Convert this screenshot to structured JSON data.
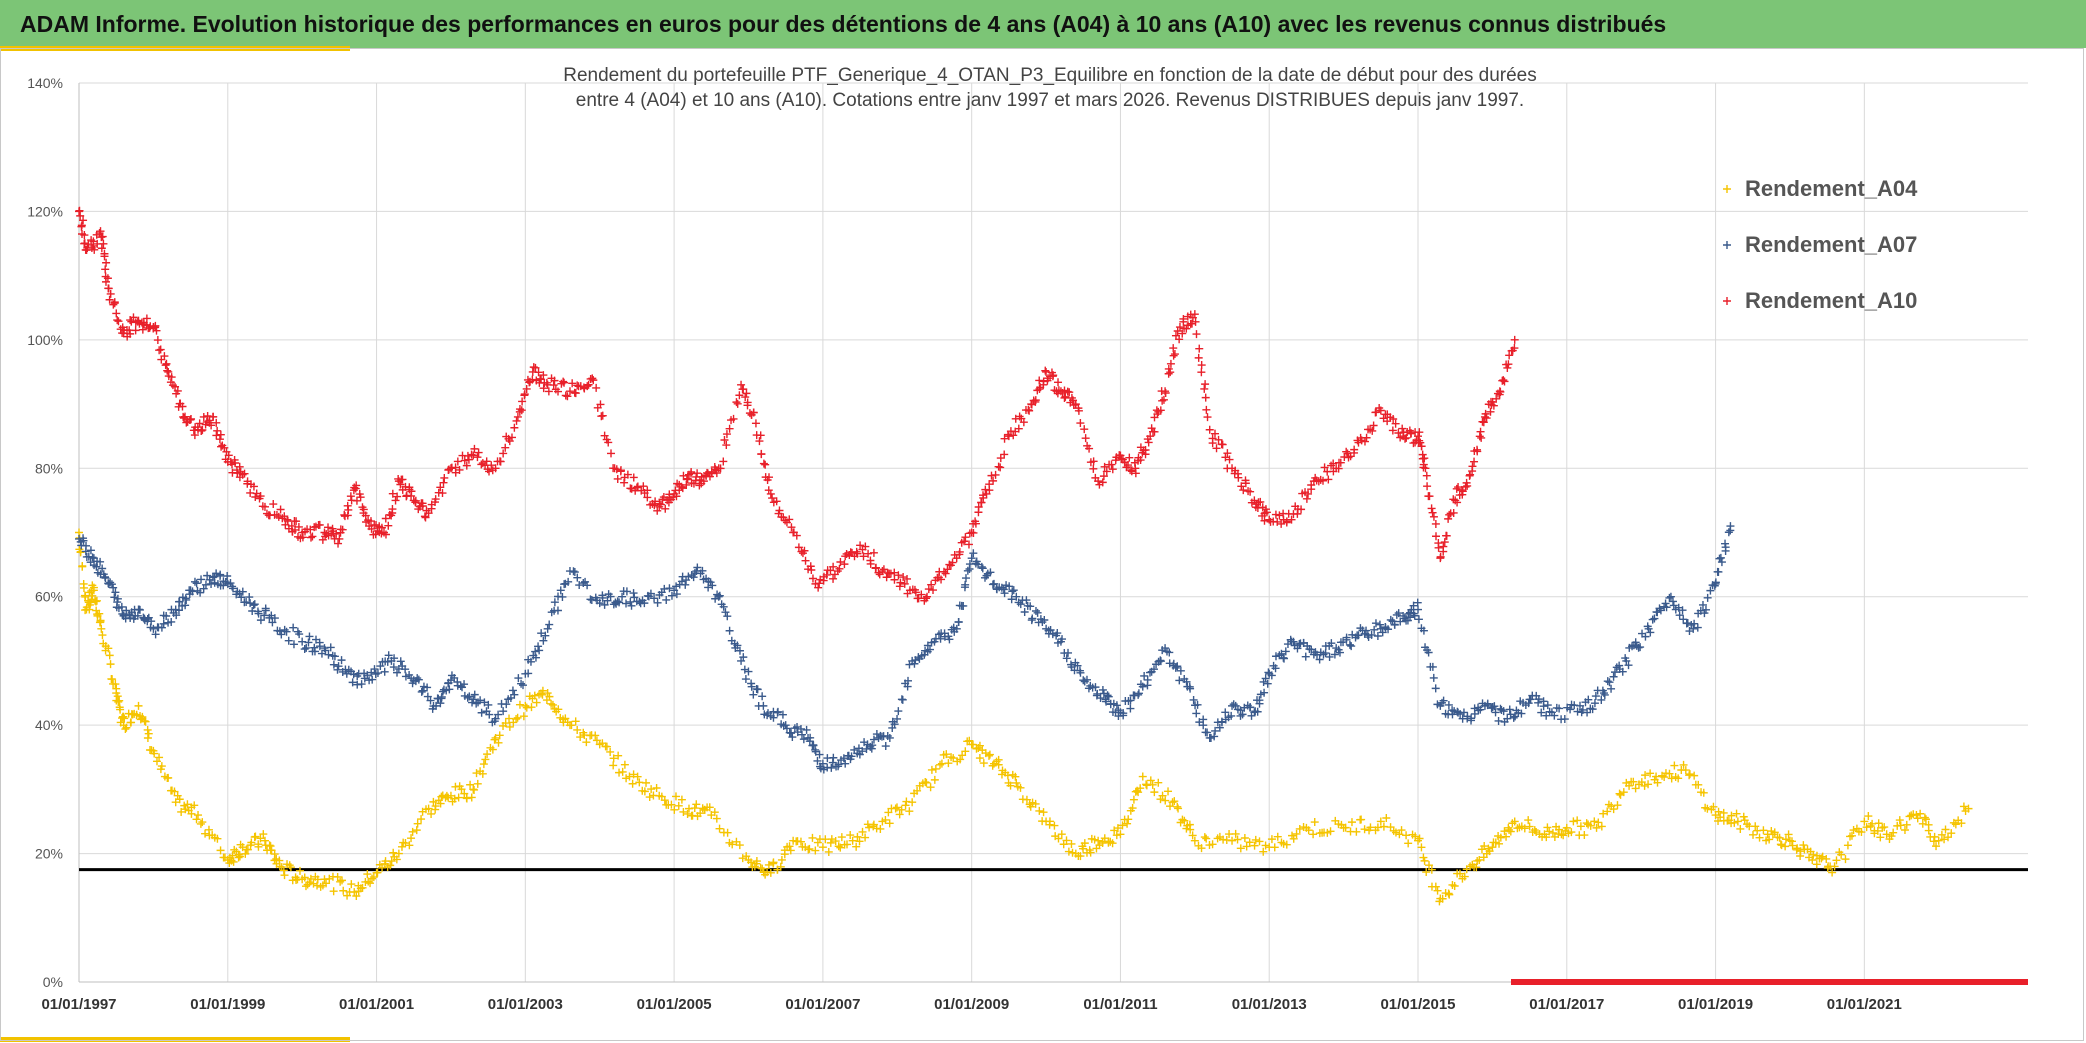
{
  "header": {
    "title": "ADAM Informe. Evolution historique des performances en euros pour des détentions de 4 ans (A04) à 10 ans (A10) avec les revenus connus distribués"
  },
  "colors": {
    "banner": "#7cc576",
    "accent": "#f2c200",
    "A04": "#f5c400",
    "A07": "#3a5a8c",
    "A10": "#e8202a",
    "reference": "#000000"
  },
  "chart_data": {
    "type": "scatter",
    "title_line1": "Rendement du portefeuille PTF_Generique_4_OTAN_P3_Equilibre  en fonction de la date de début pour des durées",
    "title_line2": "entre 4 (A04) et 10 ans (A10). Cotations entre janv 1997 et mars 2026. Revenus DISTRIBUES depuis janv 1997.",
    "xlabel": "",
    "ylabel": "",
    "xlim": [
      1997.0,
      2023.2
    ],
    "ylim": [
      0,
      140
    ],
    "yticks": [
      "0%",
      "20%",
      "40%",
      "60%",
      "80%",
      "100%",
      "120%",
      "140%"
    ],
    "xticks": [
      "01/01/1997",
      "01/01/1999",
      "01/01/2001",
      "01/01/2003",
      "01/01/2005",
      "01/01/2007",
      "01/01/2009",
      "01/01/2011",
      "01/01/2013",
      "01/01/2015",
      "01/01/2017",
      "01/01/2019",
      "01/01/2021"
    ],
    "xtick_years": [
      1997,
      1999,
      2001,
      2003,
      2005,
      2007,
      2009,
      2011,
      2013,
      2015,
      2017,
      2019,
      2021
    ],
    "reference_line": 17.5,
    "grid": true,
    "legend_position": "top-right",
    "legend": [
      "Rendement_A04",
      "Rendement_A07",
      "Rendement_A10"
    ],
    "series": [
      {
        "name": "Rendement_A04",
        "color": "#f5c400",
        "x": [
          1997.0,
          1997.1,
          1997.2,
          1997.3,
          1997.5,
          1997.6,
          1997.8,
          1998.0,
          1998.3,
          1998.6,
          1999.0,
          1999.2,
          1999.5,
          1999.7,
          2000.0,
          2000.3,
          2000.7,
          2001.0,
          2001.3,
          2001.7,
          2002.0,
          2002.3,
          2002.6,
          2003.0,
          2003.3,
          2003.6,
          2004.0,
          2004.4,
          2004.8,
          2005.2,
          2005.5,
          2006.0,
          2006.3,
          2006.6,
          2007.0,
          2007.4,
          2007.8,
          2008.2,
          2008.6,
          2009.0,
          2009.3,
          2009.6,
          2010.0,
          2010.4,
          2010.7,
          2011.0,
          2011.3,
          2011.7,
          2012.0,
          2012.5,
          2013.0,
          2013.5,
          2014.0,
          2014.5,
          2015.0,
          2015.3,
          2015.7,
          2016.0,
          2016.3,
          2016.7,
          2017.0,
          2017.4,
          2017.8,
          2018.2,
          2018.6,
          2019.0,
          2019.3,
          2019.7,
          2020.0,
          2020.3,
          2020.6,
          2021.0,
          2021.3,
          2021.7,
          2022.0,
          2022.4
        ],
        "y": [
          70,
          58,
          61,
          55,
          45,
          40,
          43,
          36,
          28,
          26,
          19,
          21,
          22,
          18,
          16,
          16,
          14,
          17,
          20,
          27,
          29,
          30,
          38,
          43,
          45,
          40,
          37,
          32,
          29,
          27,
          26,
          19,
          17,
          22,
          21,
          22,
          25,
          28,
          34,
          37,
          34,
          31,
          25,
          20,
          22,
          23,
          32,
          28,
          22,
          22,
          21,
          24,
          24,
          25,
          22,
          13,
          18,
          21,
          25,
          23,
          24,
          24,
          31,
          32,
          33,
          26,
          25,
          23,
          22,
          19,
          18,
          25,
          23,
          26,
          22,
          27
        ]
      },
      {
        "name": "Rendement_A07",
        "color": "#3a5a8c",
        "x": [
          1997.0,
          1997.2,
          1997.4,
          1997.6,
          1997.8,
          1998.0,
          1998.3,
          1998.5,
          1998.8,
          1999.0,
          1999.3,
          1999.6,
          2000.0,
          2000.3,
          2000.6,
          2000.9,
          2001.2,
          2001.5,
          2001.8,
          2002.0,
          2002.3,
          2002.6,
          2003.0,
          2003.3,
          2003.6,
          2004.0,
          2004.3,
          2004.6,
          2005.0,
          2005.3,
          2005.6,
          2005.9,
          2006.2,
          2006.5,
          2006.8,
          2007.0,
          2007.3,
          2007.6,
          2007.9,
          2008.2,
          2008.5,
          2008.8,
          2009.0,
          2009.3,
          2009.6,
          2009.9,
          2010.2,
          2010.5,
          2010.8,
          2011.0,
          2011.3,
          2011.6,
          2011.9,
          2012.2,
          2012.5,
          2012.8,
          2013.0,
          2013.3,
          2013.6,
          2013.9,
          2014.2,
          2014.5,
          2014.8,
          2015.0,
          2015.3,
          2015.6,
          2015.9,
          2016.2,
          2016.5,
          2016.8,
          2017.2,
          2017.5,
          2017.8,
          2018.1,
          2018.4,
          2018.7,
          2019.0,
          2019.2
        ],
        "y": [
          69,
          66,
          62,
          57,
          58,
          55,
          58,
          61,
          63,
          62,
          59,
          56,
          53,
          52,
          48,
          47,
          50,
          47,
          43,
          47,
          44,
          41,
          48,
          55,
          64,
          59,
          60,
          59,
          61,
          64,
          60,
          50,
          43,
          40,
          38,
          34,
          34,
          37,
          38,
          50,
          53,
          55,
          66,
          62,
          60,
          56,
          53,
          47,
          44,
          42,
          46,
          52,
          46,
          38,
          43,
          42,
          48,
          53,
          51,
          52,
          54,
          55,
          57,
          58,
          43,
          41,
          43,
          41,
          44,
          42,
          42,
          45,
          50,
          55,
          60,
          55,
          62,
          71
        ]
      },
      {
        "name": "Rendement_A10",
        "color": "#e8202a",
        "x": [
          1997.0,
          1997.1,
          1997.3,
          1997.4,
          1997.6,
          1997.8,
          1998.0,
          1998.2,
          1998.4,
          1998.6,
          1998.8,
          1999.0,
          1999.2,
          1999.5,
          1999.8,
          2000.0,
          2000.3,
          2000.5,
          2000.7,
          2000.9,
          2001.1,
          2001.3,
          2001.5,
          2001.7,
          2002.0,
          2002.3,
          2002.6,
          2002.9,
          2003.1,
          2003.3,
          2003.6,
          2003.9,
          2004.2,
          2004.5,
          2004.8,
          2005.0,
          2005.2,
          2005.4,
          2005.6,
          2005.9,
          2006.1,
          2006.3,
          2006.6,
          2006.9,
          2007.2,
          2007.5,
          2007.8,
          2008.1,
          2008.4,
          2008.7,
          2009.0,
          2009.2,
          2009.5,
          2009.8,
          2010.0,
          2010.2,
          2010.4,
          2010.7,
          2011.0,
          2011.2,
          2011.4,
          2011.6,
          2011.8,
          2012.0,
          2012.2,
          2012.5,
          2012.8,
          2013.0,
          2013.3,
          2013.6,
          2013.9,
          2014.2,
          2014.5,
          2014.8,
          2015.0,
          2015.1,
          2015.3,
          2015.5,
          2015.7,
          2015.9,
          2016.1,
          2016.3
        ],
        "y": [
          120,
          114,
          116,
          108,
          101,
          103,
          102,
          95,
          88,
          86,
          88,
          81,
          79,
          74,
          72,
          70,
          70,
          69,
          77,
          71,
          70,
          78,
          75,
          73,
          80,
          82,
          80,
          88,
          95,
          93,
          92,
          94,
          80,
          77,
          74,
          76,
          79,
          78,
          80,
          93,
          87,
          76,
          70,
          62,
          64,
          68,
          64,
          62,
          60,
          65,
          70,
          76,
          85,
          90,
          95,
          92,
          90,
          78,
          82,
          80,
          85,
          92,
          102,
          104,
          86,
          80,
          75,
          72,
          72,
          78,
          80,
          84,
          89,
          85,
          85,
          80,
          66,
          75,
          79,
          88,
          92,
          100
        ]
      }
    ]
  }
}
